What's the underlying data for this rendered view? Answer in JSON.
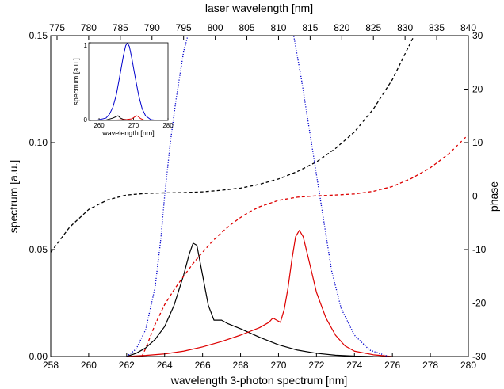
{
  "chart_data": {
    "type": "line",
    "x_bottom": {
      "label": "wavelength 3-photon spectrum [nm]",
      "range": [
        258,
        280
      ],
      "ticks": [
        258,
        260,
        262,
        264,
        266,
        268,
        270,
        272,
        274,
        276,
        278,
        280
      ]
    },
    "x_top": {
      "label": "laser wavelength [nm]",
      "range": [
        774,
        840
      ],
      "ticks": [
        775,
        780,
        785,
        790,
        795,
        800,
        805,
        810,
        815,
        820,
        825,
        830,
        835,
        840
      ]
    },
    "y_left": {
      "label": "spectrum [a.u.]",
      "range": [
        0,
        0.15
      ],
      "ticks": [
        0.0,
        0.05,
        0.1,
        0.15
      ],
      "tick_labels": [
        "0.00",
        "0.05",
        "0.10",
        "0.15"
      ]
    },
    "y_right": {
      "label": "phase",
      "range": [
        -30,
        30
      ],
      "ticks": [
        -30,
        -20,
        -10,
        0,
        10,
        20,
        30
      ]
    },
    "series": [
      {
        "color": "#000000",
        "style": "solid",
        "axis": "left",
        "points": [
          [
            262,
            0.0
          ],
          [
            262.5,
            0.0015
          ],
          [
            263,
            0.004
          ],
          [
            263.5,
            0.008
          ],
          [
            264,
            0.014
          ],
          [
            264.5,
            0.024
          ],
          [
            265,
            0.038
          ],
          [
            265.3,
            0.048
          ],
          [
            265.5,
            0.053
          ],
          [
            265.7,
            0.052
          ],
          [
            266,
            0.038
          ],
          [
            266.3,
            0.024
          ],
          [
            266.6,
            0.017
          ],
          [
            266.8,
            0.017
          ],
          [
            267,
            0.017
          ],
          [
            267.3,
            0.0155
          ],
          [
            268,
            0.013
          ],
          [
            269,
            0.009
          ],
          [
            270,
            0.0055
          ],
          [
            271,
            0.003
          ],
          [
            272,
            0.0015
          ],
          [
            273,
            0.0006
          ],
          [
            274,
            0.0002
          ],
          [
            275,
            0.0
          ]
        ]
      },
      {
        "color": "#dd0000",
        "style": "solid",
        "axis": "left",
        "points": [
          [
            262,
            0.0
          ],
          [
            263,
            0.0005
          ],
          [
            264,
            0.0012
          ],
          [
            265,
            0.0025
          ],
          [
            266,
            0.0045
          ],
          [
            267,
            0.007
          ],
          [
            268,
            0.01
          ],
          [
            269,
            0.0135
          ],
          [
            269.5,
            0.016
          ],
          [
            269.7,
            0.018
          ],
          [
            269.9,
            0.017
          ],
          [
            270.1,
            0.016
          ],
          [
            270.3,
            0.022
          ],
          [
            270.5,
            0.032
          ],
          [
            270.7,
            0.045
          ],
          [
            270.9,
            0.056
          ],
          [
            271.1,
            0.059
          ],
          [
            271.3,
            0.056
          ],
          [
            271.6,
            0.045
          ],
          [
            272,
            0.03
          ],
          [
            272.5,
            0.018
          ],
          [
            273,
            0.01
          ],
          [
            273.5,
            0.005
          ],
          [
            274,
            0.0025
          ],
          [
            275,
            0.0008
          ],
          [
            276,
            0.0
          ]
        ]
      },
      {
        "color": "#000000",
        "style": "dashed",
        "axis": "right",
        "points": [
          [
            258,
            -10.5
          ],
          [
            259,
            -5.8
          ],
          [
            260,
            -2.5
          ],
          [
            261,
            -0.7
          ],
          [
            262,
            0.2
          ],
          [
            263,
            0.5
          ],
          [
            264,
            0.6
          ],
          [
            265,
            0.65
          ],
          [
            266,
            0.8
          ],
          [
            267,
            1.1
          ],
          [
            268,
            1.5
          ],
          [
            269,
            2.2
          ],
          [
            270,
            3.2
          ],
          [
            271,
            4.6
          ],
          [
            272,
            6.4
          ],
          [
            273,
            8.9
          ],
          [
            274,
            12.0
          ],
          [
            275,
            16.3
          ],
          [
            276,
            21.8
          ],
          [
            277,
            29.0
          ],
          [
            277.15,
            30.0
          ]
        ]
      },
      {
        "color": "#dd0000",
        "style": "dashed",
        "axis": "right",
        "points": [
          [
            262.8,
            -30.0
          ],
          [
            263,
            -28.5
          ],
          [
            263.5,
            -24.0
          ],
          [
            264,
            -20.3
          ],
          [
            264.5,
            -17.5
          ],
          [
            265,
            -15.0
          ],
          [
            265.5,
            -12.6
          ],
          [
            266,
            -10.5
          ],
          [
            266.5,
            -8.5
          ],
          [
            267,
            -6.8
          ],
          [
            267.5,
            -5.3
          ],
          [
            268,
            -4.0
          ],
          [
            268.5,
            -2.9
          ],
          [
            269,
            -2.0
          ],
          [
            270,
            -0.8
          ],
          [
            271,
            -0.2
          ],
          [
            272,
            0.05
          ],
          [
            273,
            0.2
          ],
          [
            274,
            0.4
          ],
          [
            275,
            0.9
          ],
          [
            276,
            1.8
          ],
          [
            277,
            3.3
          ],
          [
            278,
            5.3
          ],
          [
            279,
            8.0
          ],
          [
            280,
            11.5
          ]
        ]
      },
      {
        "color": "#0000cc",
        "style": "dotted",
        "axis": "right",
        "points": [
          [
            262.0,
            -30.0
          ],
          [
            262.5,
            -28.6
          ],
          [
            263,
            -25.0
          ],
          [
            263.5,
            -17.0
          ],
          [
            263.8,
            -8.0
          ],
          [
            264.0,
            0.0
          ],
          [
            264.3,
            10.0
          ],
          [
            264.6,
            18.0
          ],
          [
            265.0,
            27.0
          ],
          [
            265.3,
            31.0
          ],
          [
            265.3,
            33.0
          ]
        ]
      },
      {
        "color": "#0000cc",
        "style": "dotted",
        "axis": "right",
        "points": [
          [
            270.7,
            33.0
          ],
          [
            270.8,
            30.0
          ],
          [
            271.2,
            22.0
          ],
          [
            271.6,
            13.0
          ],
          [
            272.0,
            4.0
          ],
          [
            272.4,
            -5.0
          ],
          [
            272.8,
            -14.0
          ],
          [
            273.3,
            -21.0
          ],
          [
            274.0,
            -26.0
          ],
          [
            274.8,
            -28.8
          ],
          [
            275.8,
            -30.0
          ]
        ]
      }
    ],
    "inset": {
      "xlabel": "wavelength [nm]",
      "ylabel": "spectrum [a.u.]",
      "xlim": [
        257,
        280
      ],
      "ylim": [
        0,
        1
      ],
      "x_ticks": [
        260,
        270,
        280
      ],
      "y_ticks": [
        0,
        1
      ],
      "series": [
        {
          "color": "#0000cc",
          "points": [
            [
              259,
              0.0
            ],
            [
              262,
              0.03
            ],
            [
              263,
              0.08
            ],
            [
              264,
              0.17
            ],
            [
              265,
              0.33
            ],
            [
              266,
              0.57
            ],
            [
              267,
              0.82
            ],
            [
              267.7,
              0.96
            ],
            [
              268.2,
              1.0
            ],
            [
              268.8,
              0.95
            ],
            [
              269.5,
              0.8
            ],
            [
              270.5,
              0.55
            ],
            [
              271.5,
              0.32
            ],
            [
              272.5,
              0.15
            ],
            [
              273.5,
              0.06
            ],
            [
              275,
              0.01
            ],
            [
              277,
              0.0
            ]
          ]
        },
        {
          "color": "#000000",
          "points": [
            [
              259,
              0.0
            ],
            [
              262,
              0.005
            ],
            [
              264,
              0.03
            ],
            [
              265.5,
              0.06
            ],
            [
              266.2,
              0.03
            ],
            [
              267,
              0.015
            ],
            [
              269,
              0.005
            ],
            [
              271,
              0.0
            ]
          ]
        },
        {
          "color": "#dd0000",
          "points": [
            [
              262,
              0.0
            ],
            [
              265,
              0.005
            ],
            [
              268,
              0.012
            ],
            [
              269.5,
              0.02
            ],
            [
              270.8,
              0.06
            ],
            [
              271.2,
              0.055
            ],
            [
              272,
              0.025
            ],
            [
              273,
              0.005
            ],
            [
              275,
              0.0
            ]
          ]
        }
      ]
    }
  }
}
